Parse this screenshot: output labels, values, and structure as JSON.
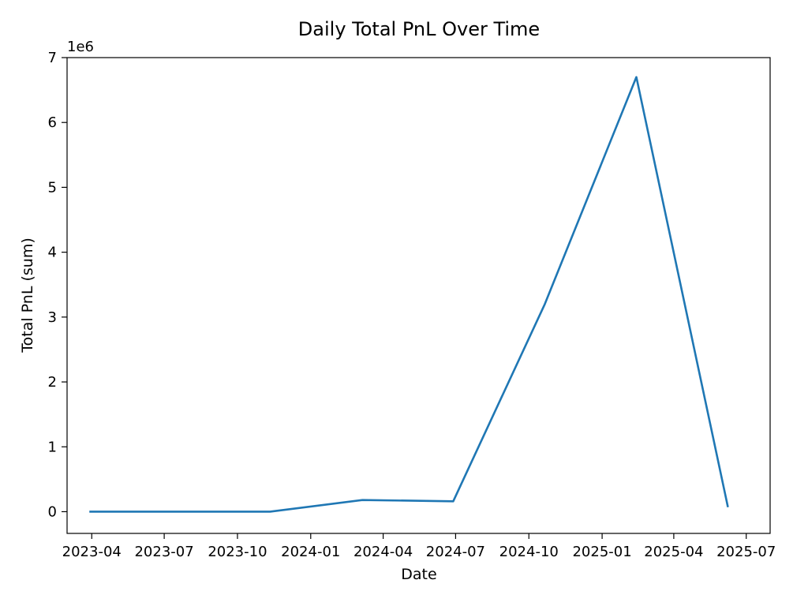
{
  "chart_data": {
    "type": "line",
    "title": "Daily Total PnL Over Time",
    "xlabel": "Date",
    "ylabel": "Total PnL (sum)",
    "y_multiplier_label": "1e6",
    "x_is_date": true,
    "xlim": [
      "2023-03-01",
      "2025-07-31"
    ],
    "ylim": [
      -0.335,
      7.0
    ],
    "x_ticks": [
      {
        "date": "2023-04-01",
        "label": "2023-04"
      },
      {
        "date": "2023-07-01",
        "label": "2023-07"
      },
      {
        "date": "2023-10-01",
        "label": "2023-10"
      },
      {
        "date": "2024-01-01",
        "label": "2024-01"
      },
      {
        "date": "2024-04-01",
        "label": "2024-04"
      },
      {
        "date": "2024-07-01",
        "label": "2024-07"
      },
      {
        "date": "2024-10-01",
        "label": "2024-10"
      },
      {
        "date": "2025-01-01",
        "label": "2025-01"
      },
      {
        "date": "2025-04-01",
        "label": "2025-04"
      },
      {
        "date": "2025-07-01",
        "label": "2025-07"
      }
    ],
    "y_ticks": [
      0,
      1,
      2,
      3,
      4,
      5,
      6,
      7
    ],
    "grid": false,
    "legend": false,
    "series": [
      {
        "color": "#1f77b4",
        "points": [
          {
            "date": "2023-03-29",
            "y": 0.0
          },
          {
            "date": "2023-07-21",
            "y": 0.0
          },
          {
            "date": "2023-11-11",
            "y": 0.0
          },
          {
            "date": "2024-03-06",
            "y": 0.18
          },
          {
            "date": "2024-06-28",
            "y": 0.16
          },
          {
            "date": "2024-10-21",
            "y": 3.2
          },
          {
            "date": "2025-02-13",
            "y": 6.7
          },
          {
            "date": "2025-06-08",
            "y": 0.07
          }
        ]
      }
    ]
  }
}
